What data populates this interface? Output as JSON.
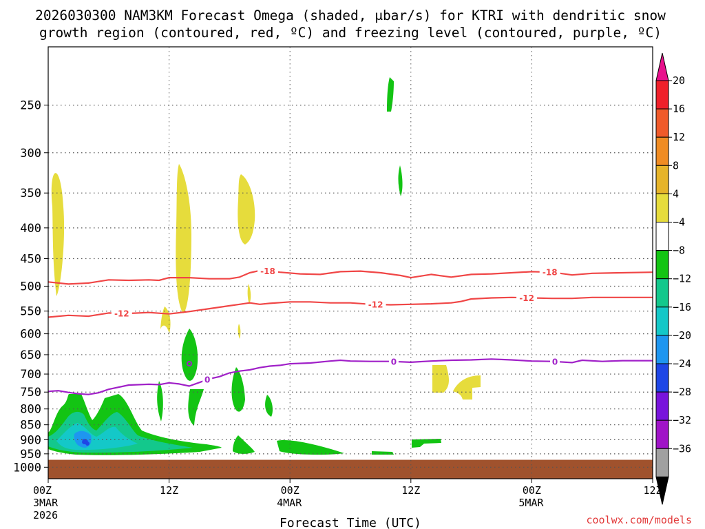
{
  "chart_data": {
    "type": "heatmap",
    "title_line1": "2026030300 NAM3KM Forecast Omega (shaded, μbar/s) for KTRI with dendritic snow",
    "title_line2": "growth region (contoured, red, ºC) and freezing level (contoured, purple, ºC)",
    "xlabel": "Forecast Time (UTC)",
    "credit": "coolwx.com/models",
    "x_hours_range": [
      0,
      60
    ],
    "p_range": [
      1045,
      200
    ],
    "y_ticks": [
      250,
      300,
      350,
      400,
      450,
      500,
      550,
      600,
      650,
      700,
      750,
      800,
      850,
      900,
      950,
      1000
    ],
    "x_ticks": [
      {
        "hour": 0,
        "line1": "00Z",
        "line2": "3MAR",
        "line3": "2026"
      },
      {
        "hour": 12,
        "line1": "12Z",
        "line2": "",
        "line3": ""
      },
      {
        "hour": 24,
        "line1": "00Z",
        "line2": "4MAR",
        "line3": ""
      },
      {
        "hour": 36,
        "line1": "12Z",
        "line2": "",
        "line3": ""
      },
      {
        "hour": 48,
        "line1": "00Z",
        "line2": "5MAR",
        "line3": ""
      },
      {
        "hour": 60,
        "line1": "12Z",
        "line2": "",
        "line3": ""
      }
    ],
    "surface_pressure": 972,
    "surface_color": "#a0522d",
    "colorbar": {
      "labels": [
        "20",
        "16",
        "12",
        "8",
        "4",
        "−4",
        "−8",
        "−12",
        "−16",
        "−20",
        "−24",
        "−28",
        "−32",
        "−36"
      ],
      "colors": [
        "#f0202a",
        "#f05a2a",
        "#f08c23",
        "#e6b42a",
        "#e6dc3c",
        "#ffffff",
        "#13c413",
        "#13c88c",
        "#14c8c8",
        "#1e96f0",
        "#1e46e6",
        "#7814dc",
        "#a014c8",
        "#a0a0a0"
      ],
      "top_color": "#e8108c",
      "bottom_color": "#000000"
    },
    "series": [
      {
        "name": "-18",
        "color": "#f04646",
        "label_hours": [
          21.8,
          49.8
        ],
        "points": [
          [
            0,
            492
          ],
          [
            2,
            496
          ],
          [
            4,
            494
          ],
          [
            6,
            488
          ],
          [
            8,
            489
          ],
          [
            10,
            488
          ],
          [
            11,
            489
          ],
          [
            12,
            484
          ],
          [
            14,
            484
          ],
          [
            16,
            486
          ],
          [
            18,
            486
          ],
          [
            19,
            483
          ],
          [
            20,
            475
          ],
          [
            21,
            471
          ],
          [
            22,
            472
          ],
          [
            23,
            474
          ],
          [
            25,
            477
          ],
          [
            27,
            478
          ],
          [
            29,
            473
          ],
          [
            31,
            472
          ],
          [
            33,
            475
          ],
          [
            35,
            480
          ],
          [
            36,
            484
          ],
          [
            38,
            478
          ],
          [
            40,
            483
          ],
          [
            42,
            478
          ],
          [
            44,
            477
          ],
          [
            46,
            475
          ],
          [
            48,
            473
          ],
          [
            50,
            474
          ],
          [
            52,
            479
          ],
          [
            54,
            476
          ],
          [
            57,
            475
          ],
          [
            60,
            474
          ]
        ]
      },
      {
        "name": "-12",
        "color": "#f04646",
        "label_hours": [
          7.3,
          32.5,
          47.5
        ],
        "points": [
          [
            0,
            563
          ],
          [
            2,
            559
          ],
          [
            4,
            561
          ],
          [
            6,
            554
          ],
          [
            8,
            555
          ],
          [
            10,
            553
          ],
          [
            12,
            556
          ],
          [
            14,
            551
          ],
          [
            16,
            545
          ],
          [
            18,
            539
          ],
          [
            19,
            536
          ],
          [
            20,
            533
          ],
          [
            21,
            536
          ],
          [
            22,
            534
          ],
          [
            24,
            531
          ],
          [
            26,
            531
          ],
          [
            28,
            533
          ],
          [
            30,
            533
          ],
          [
            32,
            536
          ],
          [
            34,
            537
          ],
          [
            36,
            536
          ],
          [
            38,
            535
          ],
          [
            40,
            533
          ],
          [
            41,
            530
          ],
          [
            42,
            525
          ],
          [
            44,
            523
          ],
          [
            46,
            522
          ],
          [
            48,
            523
          ],
          [
            50,
            524
          ],
          [
            52,
            524
          ],
          [
            54,
            522
          ],
          [
            57,
            522
          ],
          [
            60,
            522
          ]
        ]
      },
      {
        "name": "0",
        "color": "#a020c8",
        "label_hours": [
          15.8,
          34.3,
          50.3
        ],
        "points": [
          [
            0,
            748
          ],
          [
            1,
            746
          ],
          [
            2,
            751
          ],
          [
            3,
            755
          ],
          [
            4,
            757
          ],
          [
            5,
            752
          ],
          [
            6,
            742
          ],
          [
            8,
            730
          ],
          [
            10,
            728
          ],
          [
            11,
            729
          ],
          [
            12,
            724
          ],
          [
            13,
            727
          ],
          [
            14,
            733
          ],
          [
            15,
            723
          ],
          [
            16,
            713
          ],
          [
            17,
            707
          ],
          [
            18,
            697
          ],
          [
            19,
            692
          ],
          [
            20,
            689
          ],
          [
            21,
            683
          ],
          [
            22,
            679
          ],
          [
            23,
            677
          ],
          [
            24,
            673
          ],
          [
            26,
            671
          ],
          [
            28,
            666
          ],
          [
            29,
            664
          ],
          [
            30,
            666
          ],
          [
            32,
            667
          ],
          [
            34,
            667
          ],
          [
            36,
            669
          ],
          [
            38,
            666
          ],
          [
            40,
            664
          ],
          [
            42,
            663
          ],
          [
            44,
            661
          ],
          [
            46,
            663
          ],
          [
            48,
            666
          ],
          [
            50,
            667
          ],
          [
            52,
            670
          ],
          [
            53,
            664
          ],
          [
            55,
            667
          ],
          [
            57,
            665
          ],
          [
            60,
            665
          ]
        ]
      }
    ]
  }
}
